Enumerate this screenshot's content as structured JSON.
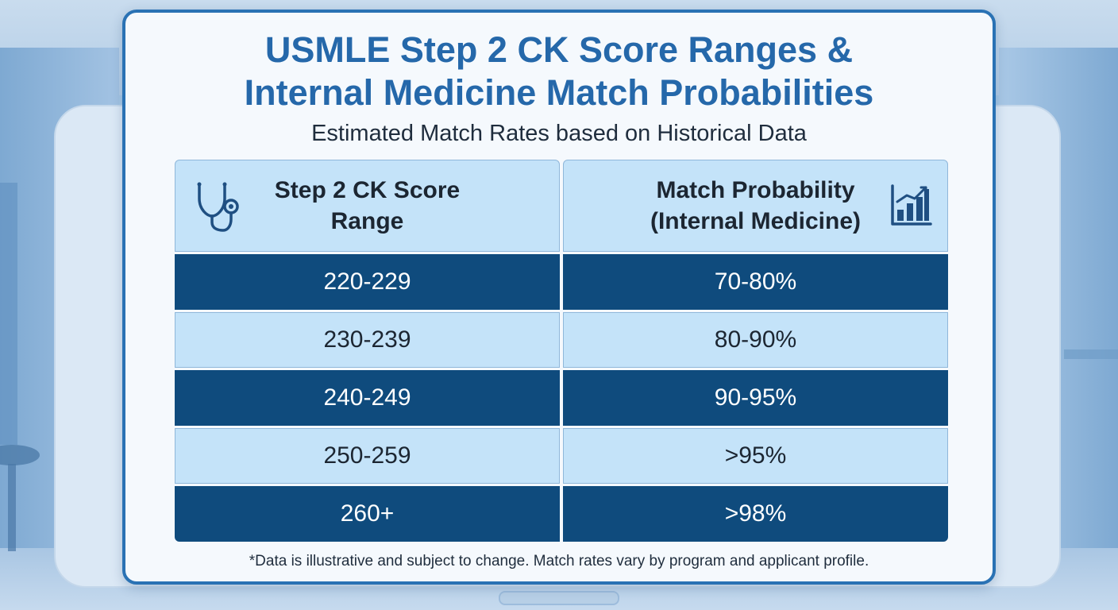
{
  "title_lines": [
    "USMLE Step 2 CK Score Ranges &",
    "Internal Medicine Match Probabilities"
  ],
  "subtitle": "Estimated Match Rates based on Historical Data",
  "table": {
    "headers": [
      {
        "lines": [
          "Step 2 CK Score",
          "Range"
        ],
        "icon": "stethoscope-icon"
      },
      {
        "lines": [
          "Match Probability",
          "(Internal Medicine)"
        ],
        "icon": "bar-chart-icon"
      }
    ],
    "rows": [
      {
        "score": "220-229",
        "probability": "70-80%"
      },
      {
        "score": "230-239",
        "probability": "80-90%"
      },
      {
        "score": "240-249",
        "probability": "90-95%"
      },
      {
        "score": "250-259",
        "probability": ">95%"
      },
      {
        "score": "260+",
        "probability": ">98%"
      }
    ]
  },
  "footnote": "*Data is illustrative and subject to change. Match rates vary by program and applicant profile.",
  "colors": {
    "accent": "#2568aa",
    "dark_row": "#0f4b7d",
    "light_row": "#c4e3f9",
    "card_border": "#2a72b4"
  },
  "chart_data": {
    "type": "table",
    "title": "USMLE Step 2 CK Score Ranges & Internal Medicine Match Probabilities",
    "subtitle": "Estimated Match Rates based on Historical Data",
    "columns": [
      "Step 2 CK Score Range",
      "Match Probability (Internal Medicine)"
    ],
    "rows": [
      [
        "220-229",
        "70-80%"
      ],
      [
        "230-239",
        "80-90%"
      ],
      [
        "240-249",
        "90-95%"
      ],
      [
        "250-259",
        ">95%"
      ],
      [
        "260+",
        ">98%"
      ]
    ]
  }
}
